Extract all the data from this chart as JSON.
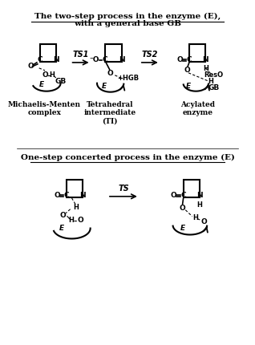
{
  "bg_color": "#ffffff",
  "title1_line1": "The two-step process in the enzyme (E),",
  "title1_line2": "with a general base GB",
  "title2": "One-step concerted process in the enzyme (E)",
  "label_MM": "Michaelis-Menten\ncomplex",
  "label_TI": "Tetrahedral\nintermediate\n(TI)",
  "label_AE": "Acylated\nenzyme",
  "arrow_ts1": "TS1",
  "arrow_ts2": "TS2",
  "arrow_ts": "TS",
  "fig_width": 3.18,
  "fig_height": 4.3
}
